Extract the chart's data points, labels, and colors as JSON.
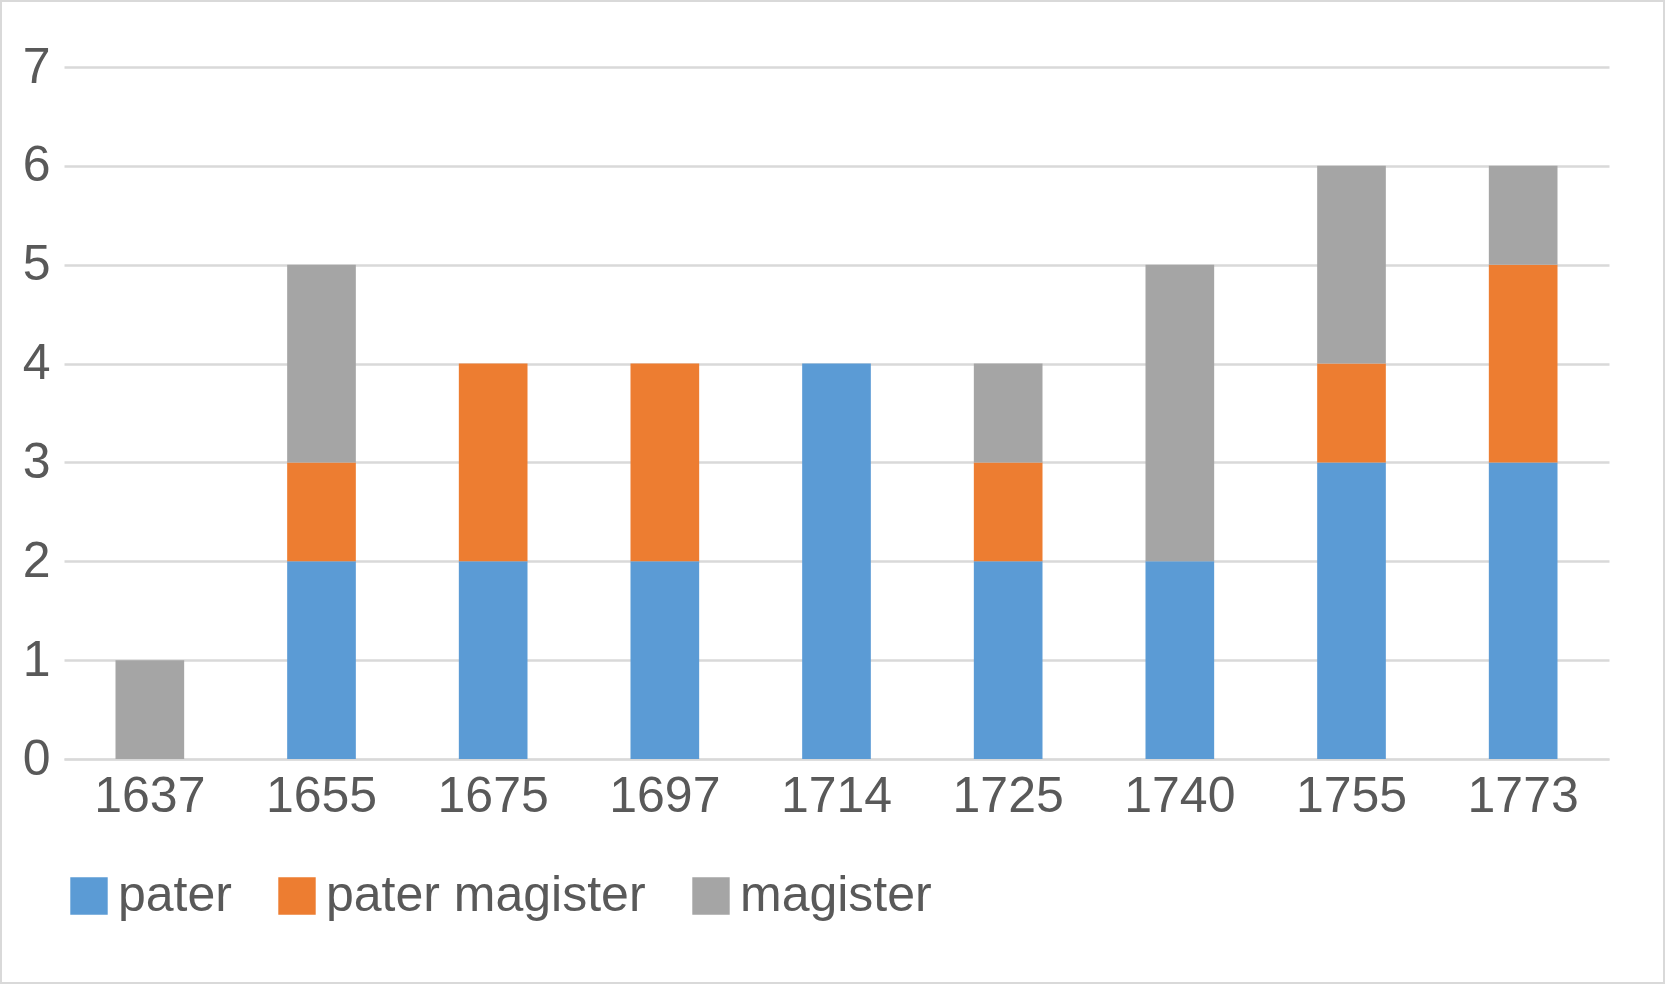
{
  "chart_data": {
    "type": "bar",
    "stacked": true,
    "categories": [
      "1637",
      "1655",
      "1675",
      "1697",
      "1714",
      "1725",
      "1740",
      "1755",
      "1773"
    ],
    "series": [
      {
        "name": "pater",
        "color": "#5b9bd5",
        "values": [
          0,
          2,
          2,
          2,
          4,
          2,
          2,
          3,
          3
        ]
      },
      {
        "name": "pater magister",
        "color": "#ed7d31",
        "values": [
          0,
          1,
          2,
          2,
          0,
          1,
          0,
          1,
          2
        ]
      },
      {
        "name": "magister",
        "color": "#a5a5a5",
        "values": [
          1,
          2,
          0,
          0,
          0,
          1,
          3,
          2,
          1
        ]
      }
    ],
    "ylim": [
      0,
      7
    ],
    "yticks": [
      0,
      1,
      2,
      3,
      4,
      5,
      6,
      7
    ],
    "grid": "y",
    "legend": "bottom"
  }
}
